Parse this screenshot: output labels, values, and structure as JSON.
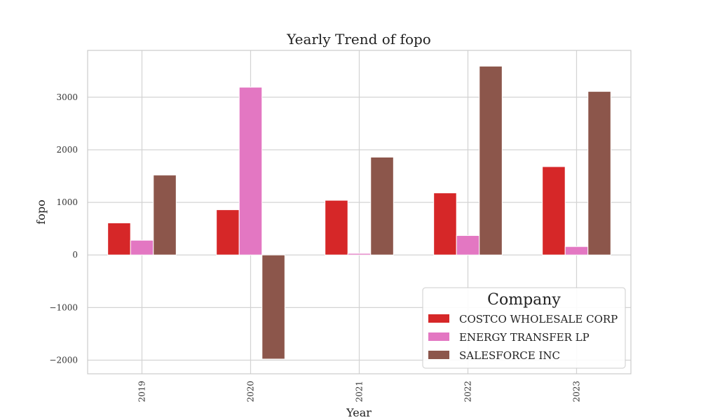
{
  "chart_data": {
    "type": "bar",
    "title": "Yearly Trend of fopo",
    "xlabel": "Year",
    "ylabel": "fopo",
    "categories": [
      "2019",
      "2020",
      "2021",
      "2022",
      "2023"
    ],
    "series": [
      {
        "name": "COSTCO WHOLESALE CORP",
        "color": "#d62728",
        "values": [
          610,
          860,
          1040,
          1180,
          1680
        ]
      },
      {
        "name": "ENERGY TRANSFER LP",
        "color": "#e377c2",
        "values": [
          280,
          3190,
          30,
          370,
          160
        ]
      },
      {
        "name": "SALESFORCE INC",
        "color": "#8c564b",
        "values": [
          1520,
          -1980,
          1860,
          3590,
          3110
        ]
      }
    ],
    "ylim": [
      -2260,
      3890
    ],
    "yticks": [
      -2000,
      -1000,
      0,
      1000,
      2000,
      3000
    ],
    "ytick_labels": [
      "−2000",
      "−1000",
      "0",
      "1000",
      "2000",
      "3000"
    ],
    "grid": true,
    "legend": {
      "title": "Company",
      "placement": "lower-right"
    }
  }
}
